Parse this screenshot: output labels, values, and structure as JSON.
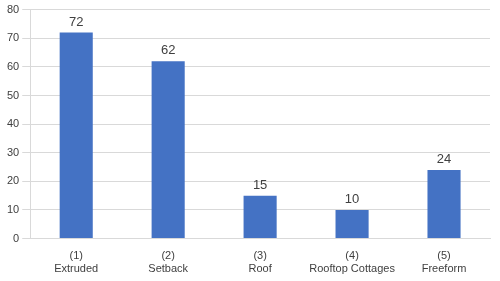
{
  "chart_data": {
    "type": "bar",
    "categories": [
      "(1) Extruded",
      "(2) Setback",
      "(3) Roof",
      "(4) Rooftop Cottages",
      "(5) Freeform"
    ],
    "values": [
      72,
      62,
      15,
      10,
      24
    ],
    "color": "#4472c4",
    "ylim": [
      0,
      80
    ],
    "yticks": [
      0,
      10,
      20,
      30,
      40,
      50,
      60,
      70,
      80
    ],
    "grid": true,
    "data_labels": true
  }
}
